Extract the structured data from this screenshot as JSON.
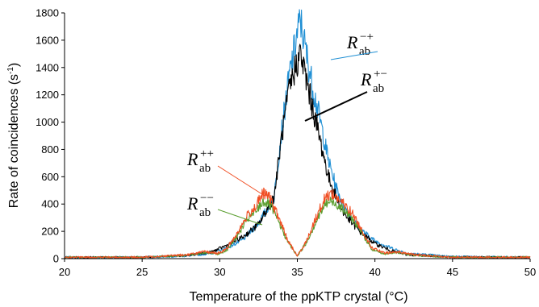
{
  "chart_data": {
    "type": "line",
    "title": "",
    "xlabel": "Temperature of the ppKTP crystal (°C)",
    "ylabel": "Rate of coincidences (s-1)",
    "ylabel_main": "Rate of coincidences (s",
    "ylabel_exp": "-1",
    "ylabel_close": ")",
    "xlim": [
      20,
      50
    ],
    "ylim": [
      0,
      1800
    ],
    "xticks": [
      "20",
      "25",
      "30",
      "35",
      "40",
      "45",
      "50"
    ],
    "yticks": [
      "0",
      "200",
      "400",
      "600",
      "800",
      "1000",
      "1200",
      "1400",
      "1600",
      "1800"
    ],
    "grid": false,
    "legend": "annotations next to curves",
    "series": [
      {
        "name": "R_ab^{-+}",
        "label_main": "R",
        "label_sub": "ab",
        "label_sup": "−+",
        "color": "#1f8fd4",
        "x": [
          20,
          25,
          28,
          29.5,
          30.5,
          31.5,
          32.5,
          33.5,
          34,
          34.5,
          35,
          35.2,
          35.5,
          36,
          36.5,
          37,
          37.5,
          38,
          39,
          40,
          41,
          42,
          45,
          50
        ],
        "y": [
          10,
          10,
          20,
          40,
          80,
          140,
          260,
          450,
          950,
          1350,
          1650,
          1750,
          1550,
          1250,
          1000,
          720,
          520,
          380,
          220,
          130,
          80,
          40,
          15,
          10
        ]
      },
      {
        "name": "R_ab^{+-}",
        "label_main": "R",
        "label_sub": "ab",
        "label_sup": "+−",
        "color": "#000000",
        "x": [
          20,
          25,
          28,
          29.5,
          30.5,
          31.5,
          32.5,
          33.5,
          34,
          34.5,
          35,
          35.2,
          35.5,
          36,
          36.5,
          37,
          37.5,
          38,
          39,
          40,
          41,
          42,
          45,
          50
        ],
        "y": [
          10,
          10,
          25,
          50,
          100,
          160,
          250,
          450,
          900,
          1250,
          1450,
          1500,
          1350,
          1100,
          850,
          600,
          450,
          330,
          200,
          110,
          60,
          30,
          12,
          10
        ]
      },
      {
        "name": "R_ab^{++}",
        "label_main": "R",
        "label_sub": "ab",
        "label_sup": "++",
        "color": "#f04e23",
        "x": [
          20,
          25,
          28,
          29,
          30,
          30.5,
          31.2,
          31.8,
          32.3,
          32.8,
          33.2,
          33.8,
          34.4,
          35,
          35.6,
          36.2,
          36.8,
          37.2,
          37.8,
          38.5,
          39.2,
          39.8,
          40.6,
          41.5,
          42.5,
          45,
          50
        ],
        "y": [
          10,
          10,
          30,
          50,
          40,
          80,
          200,
          320,
          380,
          480,
          450,
          300,
          130,
          20,
          130,
          300,
          450,
          480,
          420,
          340,
          200,
          80,
          40,
          50,
          30,
          10,
          10
        ]
      },
      {
        "name": "R_ab^{--}",
        "label_main": "R",
        "label_sub": "ab",
        "label_sup": "−−",
        "color": "#5a9e2f",
        "x": [
          20,
          25,
          28,
          29,
          30,
          30.5,
          31.2,
          31.8,
          32.3,
          32.8,
          33.2,
          33.8,
          34.4,
          35,
          35.6,
          36.2,
          36.8,
          37.2,
          37.8,
          38.5,
          39.2,
          39.8,
          40.6,
          41.5,
          42.5,
          45,
          50
        ],
        "y": [
          10,
          10,
          25,
          45,
          35,
          70,
          180,
          290,
          340,
          420,
          400,
          270,
          120,
          20,
          120,
          270,
          400,
          420,
          380,
          300,
          180,
          70,
          35,
          45,
          25,
          10,
          10
        ]
      }
    ]
  }
}
